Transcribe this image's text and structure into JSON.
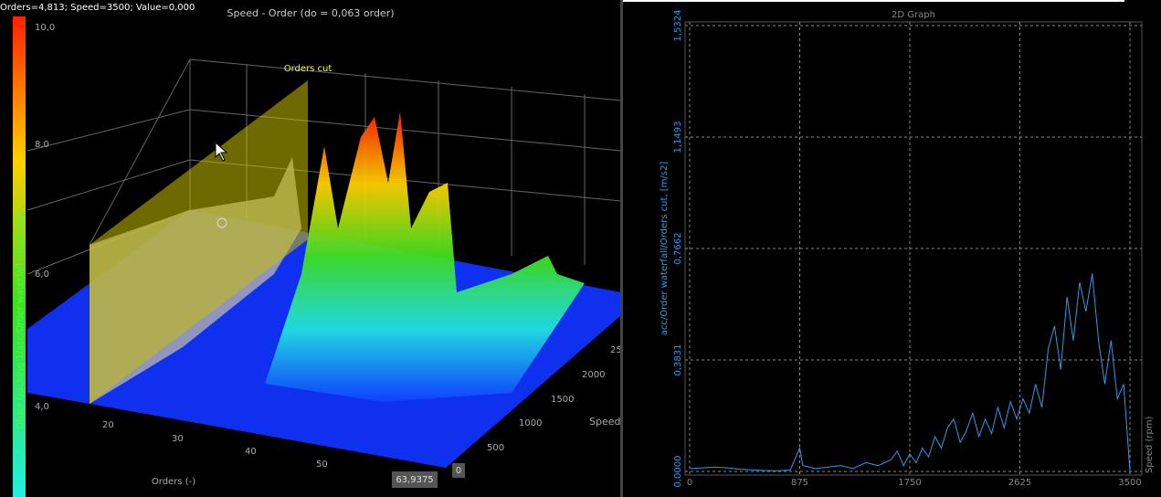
{
  "left_panel": {
    "status": "Orders=4,813; Speed=3500; Value=0,000",
    "title": "Speed - Order (do = 0,063 order)",
    "colorbar_label": "Order tracking 1/acc/Order waterfall (m/s2 rms)",
    "colorbar_ticks": [
      "10,0",
      "8,0",
      "6,0",
      "4,0"
    ],
    "cut_label": "Orders cut",
    "orders_ticks": [
      "20",
      "30",
      "40",
      "50"
    ],
    "orders_label": "Orders (-)",
    "orders_cursor": "63,9375",
    "speed_cursor": "0",
    "speed_ticks": [
      "500",
      "1000",
      "1500",
      "2000",
      "25"
    ],
    "speed_label": "Speed"
  },
  "chart_data": {
    "type": "line",
    "title": "2D Graph",
    "y_label": "acc/Order waterfall/Orders cut, [m/s2]",
    "x_label": "Speed (rpm)",
    "xlim": [
      0,
      3500
    ],
    "xticks": [
      0,
      875,
      1750,
      2625,
      3500
    ],
    "ylim": [
      0,
      1.5324
    ],
    "yticks": [
      {
        "value": 0,
        "label": "0,0000"
      },
      {
        "value": 0.3831,
        "label": "0,3831"
      },
      {
        "value": 0.7662,
        "label": "0,7662"
      },
      {
        "value": 1.1493,
        "label": "1,1493"
      },
      {
        "value": 1.5324,
        "label": "1,5324"
      }
    ],
    "grid": true,
    "color": "#2e9be6",
    "x": [
      0,
      100,
      200,
      300,
      400,
      500,
      600,
      700,
      800,
      875,
      900,
      1000,
      1100,
      1200,
      1300,
      1400,
      1500,
      1600,
      1650,
      1700,
      1750,
      1800,
      1850,
      1900,
      1950,
      2000,
      2050,
      2100,
      2150,
      2200,
      2250,
      2300,
      2350,
      2400,
      2450,
      2500,
      2550,
      2600,
      2650,
      2700,
      2750,
      2800,
      2850,
      2900,
      2950,
      3000,
      3050,
      3100,
      3150,
      3200,
      3250,
      3300,
      3350,
      3400,
      3450,
      3500
    ],
    "values": [
      0.01,
      0.012,
      0.015,
      0.012,
      0.008,
      0.005,
      0.003,
      0.002,
      0.005,
      0.08,
      0.02,
      0.01,
      0.015,
      0.02,
      0.01,
      0.03,
      0.02,
      0.04,
      0.07,
      0.02,
      0.06,
      0.03,
      0.08,
      0.05,
      0.12,
      0.08,
      0.15,
      0.18,
      0.1,
      0.14,
      0.2,
      0.12,
      0.18,
      0.13,
      0.22,
      0.15,
      0.24,
      0.18,
      0.25,
      0.2,
      0.3,
      0.22,
      0.42,
      0.5,
      0.35,
      0.6,
      0.45,
      0.65,
      0.55,
      0.68,
      0.45,
      0.3,
      0.45,
      0.25,
      0.3,
      0
    ]
  }
}
